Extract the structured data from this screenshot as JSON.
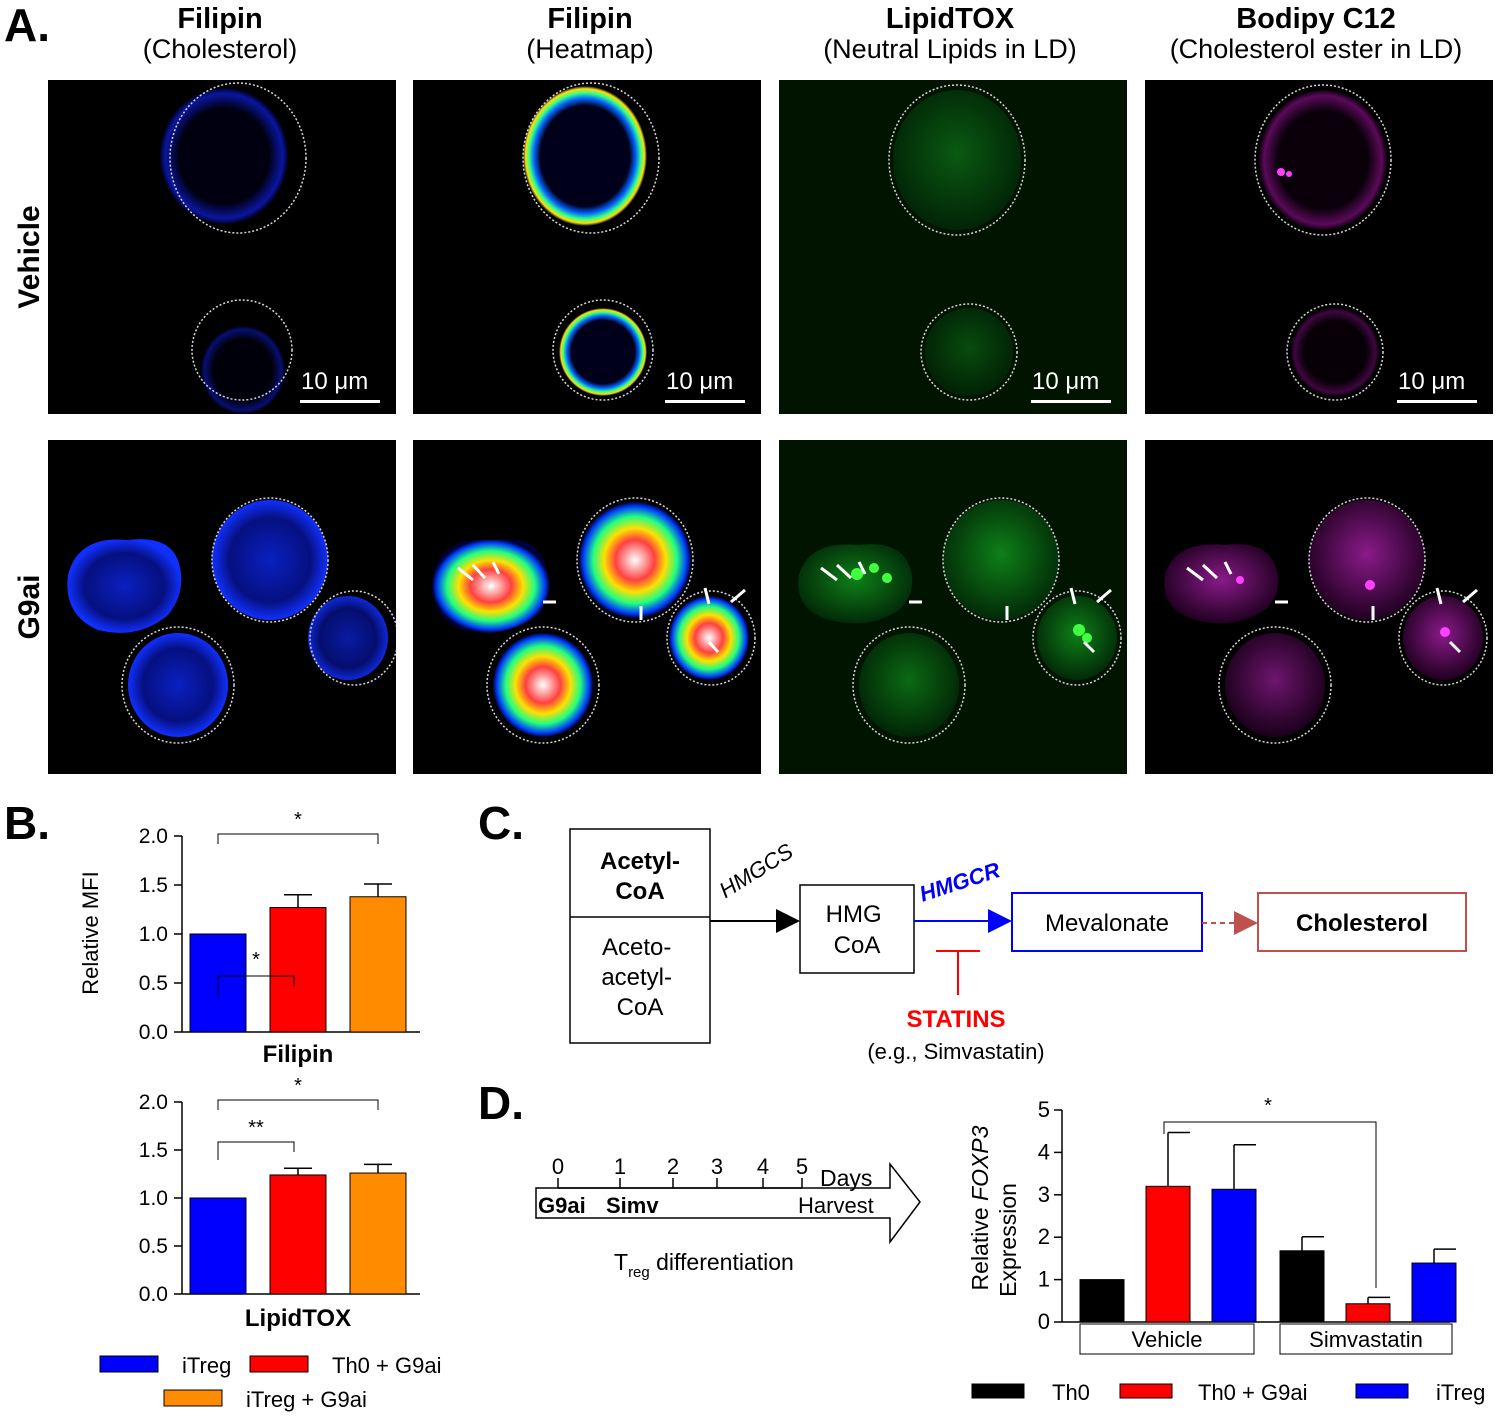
{
  "panelA": {
    "letter": "A.",
    "columns": [
      {
        "title": "Filipin",
        "subtitle": "(Cholesterol)"
      },
      {
        "title": "Filipin",
        "subtitle": "(Heatmap)"
      },
      {
        "title": "LipidTOX",
        "subtitle": "(Neutral Lipids in LD)"
      },
      {
        "title": "Bodipy C12",
        "subtitle": "(Cholesterol ester in LD)"
      }
    ],
    "rows": [
      "Vehicle",
      "G9ai"
    ],
    "scalebar": "10 μm"
  },
  "panelB": {
    "letter": "B.",
    "ylabel": "Relative MFI",
    "yticks": [
      "0.0",
      "0.5",
      "1.0",
      "1.5",
      "2.0"
    ],
    "chart1_title": "Filipin",
    "chart2_title": "LipidTOX",
    "sig1": [
      "*",
      "*"
    ],
    "sig2": [
      "**",
      "*"
    ],
    "legend": [
      "iTreg",
      "Th0 + G9ai",
      "iTreg + G9ai"
    ]
  },
  "panelC": {
    "letter": "C.",
    "acetyl": "Acetyl-\nCoA",
    "acetoacetyl": [
      "Aceto-",
      "acetyl-",
      "CoA"
    ],
    "hmgcs": "HMGCS",
    "hmgcr": "HMGCR",
    "hmgcoa": [
      "HMG",
      "CoA"
    ],
    "mevalonate": "Mevalonate",
    "cholesterol": "Cholesterol",
    "statins": "STATINS",
    "statins_eg": "(e.g., Simvastatin)"
  },
  "panelD": {
    "letter": "D.",
    "days": [
      "0",
      "1",
      "2",
      "3",
      "4",
      "5"
    ],
    "days_label": "Days",
    "g9ai": "G9ai",
    "simv": "Simv",
    "harvest": "Harvest",
    "treg_T": "T",
    "treg_sub": "reg",
    "treg_rest": " differentiation",
    "ylabel_pre": "Relative ",
    "ylabel_gene": "FOXP3",
    "ylabel_2": "Expression",
    "yticks": [
      "0",
      "1",
      "2",
      "3",
      "4",
      "5"
    ],
    "groups": [
      "Vehicle",
      "Simvastatin"
    ],
    "sig": "*",
    "legend": [
      "Th0",
      "Th0 + G9ai",
      "iTreg"
    ]
  },
  "colors": {
    "blue": "#0000ff",
    "red": "#ff0000",
    "orange": "#ff8c00",
    "black": "#000000"
  },
  "chart_data": [
    {
      "type": "bar",
      "title": "Filipin",
      "ylabel": "Relative MFI",
      "ylim": [
        0,
        2.0
      ],
      "categories": [
        "iTreg",
        "Th0 + G9ai",
        "iTreg + G9ai"
      ],
      "values": [
        1.0,
        1.27,
        1.38
      ],
      "errors": [
        0,
        0.13,
        0.13
      ],
      "colors": [
        "#0000ff",
        "#ff0000",
        "#ff8c00"
      ]
    },
    {
      "type": "bar",
      "title": "LipidTOX",
      "ylabel": "Relative MFI",
      "ylim": [
        0,
        2.0
      ],
      "categories": [
        "iTreg",
        "Th0 + G9ai",
        "iTreg + G9ai"
      ],
      "values": [
        1.0,
        1.24,
        1.26
      ],
      "errors": [
        0,
        0.07,
        0.09
      ],
      "colors": [
        "#0000ff",
        "#ff0000",
        "#ff8c00"
      ]
    },
    {
      "type": "bar",
      "ylabel": "Relative FOXP3 Expression",
      "ylim": [
        0,
        5
      ],
      "categories": [
        "Vehicle",
        "Simvastatin"
      ],
      "series": [
        {
          "name": "Th0",
          "values": [
            1.0,
            1.68
          ],
          "errors": [
            0,
            0.33
          ],
          "color": "#000000"
        },
        {
          "name": "Th0 + G9ai",
          "values": [
            3.2,
            0.43
          ],
          "errors": [
            1.27,
            0.15
          ],
          "color": "#ff0000"
        },
        {
          "name": "iTreg",
          "values": [
            3.13,
            1.39
          ],
          "errors": [
            1.05,
            0.33
          ],
          "color": "#0000ff"
        }
      ]
    }
  ]
}
